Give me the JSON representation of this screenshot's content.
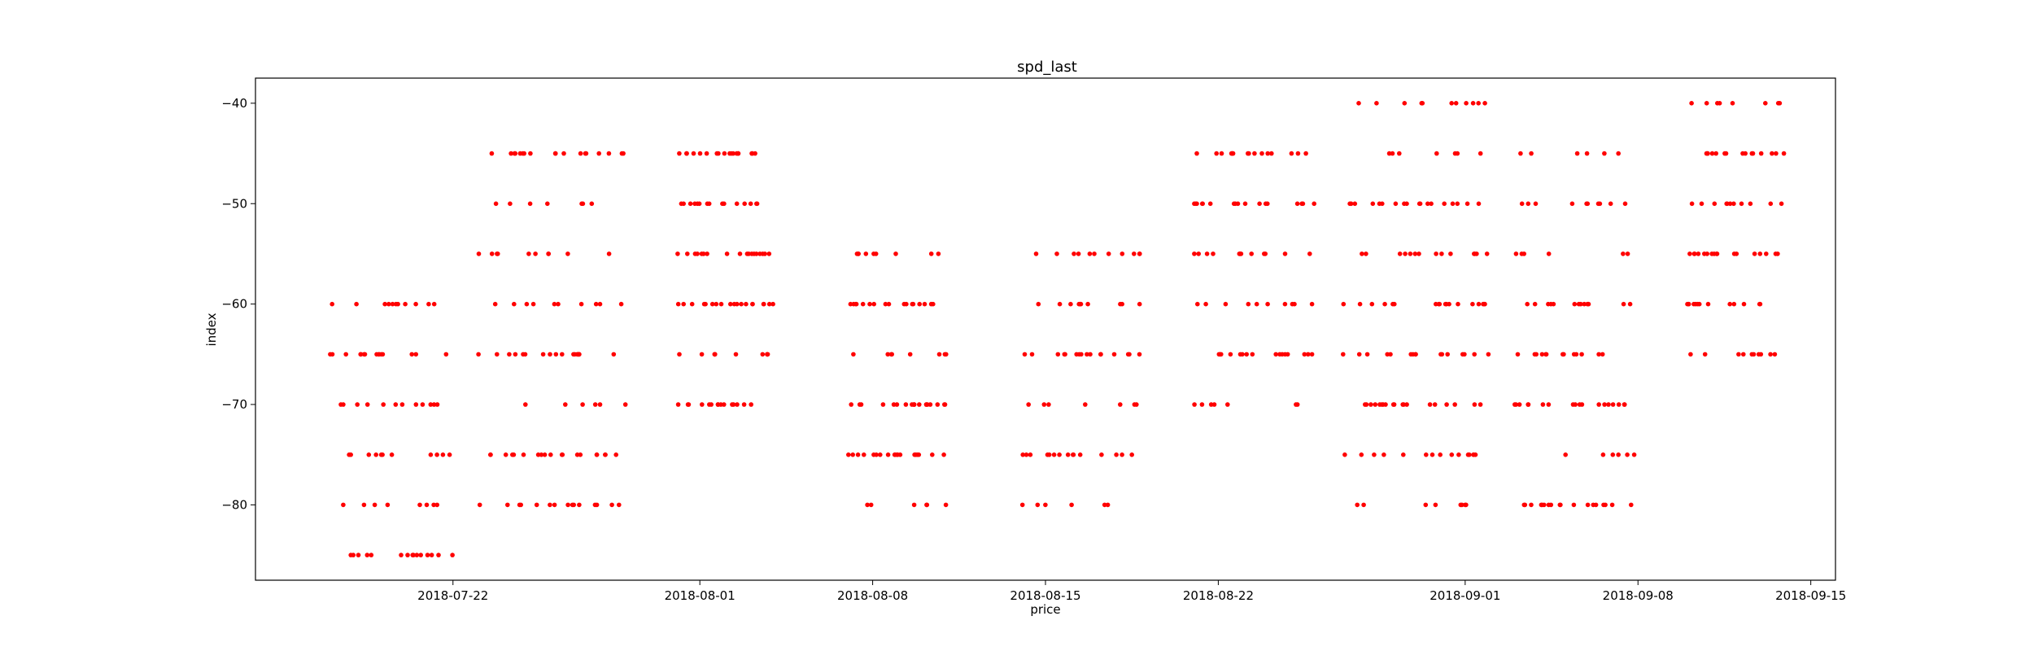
{
  "chart_data": {
    "type": "scatter",
    "title": "spd_last",
    "xlabel": "price",
    "ylabel": "index",
    "x_axis_type": "date",
    "xlim": [
      "2018-07-14",
      "2018-09-16"
    ],
    "ylim": [
      -87.5,
      -37.5
    ],
    "x_ticks": [
      "2018-07-22",
      "2018-08-01",
      "2018-08-08",
      "2018-08-15",
      "2018-08-22",
      "2018-09-01",
      "2018-09-08",
      "2018-09-15"
    ],
    "y_ticks": [
      -80,
      -70,
      -60,
      -50,
      -40
    ],
    "grid": false,
    "legend": "none",
    "marker_color": "#ff0000",
    "clusters": [
      {
        "start": "2018-07-17",
        "end": "2018-07-21",
        "levels": [
          -85,
          -80,
          -75,
          -70,
          -65,
          -60
        ]
      },
      {
        "start": "2018-07-23",
        "end": "2018-07-28",
        "levels": [
          -80,
          -75,
          -70,
          -65,
          -60,
          -55,
          -50,
          -45
        ]
      },
      {
        "start": "2018-07-31",
        "end": "2018-08-03",
        "levels": [
          -70,
          -65,
          -60,
          -55,
          -50,
          -45
        ]
      },
      {
        "start": "2018-08-07",
        "end": "2018-08-10",
        "levels": [
          -80,
          -75,
          -70,
          -65,
          -60,
          -55
        ]
      },
      {
        "start": "2018-08-14",
        "end": "2018-08-18",
        "levels": [
          -80,
          -75,
          -70,
          -65,
          -60,
          -55
        ]
      },
      {
        "start": "2018-08-21",
        "end": "2018-08-25",
        "levels": [
          -70,
          -65,
          -60,
          -55,
          -50,
          -45
        ]
      },
      {
        "start": "2018-08-27",
        "end": "2018-09-01",
        "levels": [
          -80,
          -75,
          -70,
          -65,
          -60,
          -55,
          -50,
          -45,
          -40
        ]
      },
      {
        "start": "2018-09-03",
        "end": "2018-09-07",
        "levels": [
          -80,
          -75,
          -70,
          -65,
          -60,
          -55,
          -50,
          -45
        ]
      },
      {
        "start": "2018-09-10",
        "end": "2018-09-13",
        "levels": [
          -65,
          -60,
          -55,
          -50,
          -45,
          -40
        ]
      }
    ]
  }
}
